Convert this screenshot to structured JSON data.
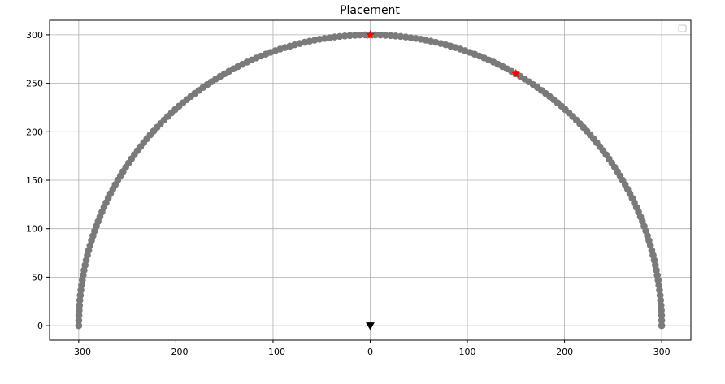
{
  "chart_data": {
    "type": "scatter",
    "title": "Placement",
    "xlabel": "",
    "ylabel": "",
    "xlim": [
      -330,
      330
    ],
    "ylim": [
      -15,
      315
    ],
    "grid": true,
    "legend": {
      "placement": "top-right",
      "entries": []
    },
    "x_ticks": [
      -300,
      -200,
      -100,
      0,
      100,
      200,
      300
    ],
    "x_tick_labels": [
      "−300",
      "−200",
      "−100",
      "0",
      "100",
      "200",
      "300"
    ],
    "y_ticks": [
      0,
      50,
      100,
      150,
      200,
      250,
      300
    ],
    "y_tick_labels": [
      "0",
      "50",
      "100",
      "150",
      "200",
      "250",
      "300"
    ],
    "series": [
      {
        "marker": "circle",
        "color": "#7a7a7a",
        "shape": "semicircle",
        "radius": 300,
        "center": [
          0,
          0
        ],
        "angle_start_deg": 0,
        "angle_end_deg": 180,
        "point_count": 181
      },
      {
        "marker": "star",
        "color": "#ff0000",
        "points": [
          [
            0,
            300
          ],
          [
            150,
            260
          ]
        ]
      },
      {
        "marker": "triangle-down",
        "color": "#000000",
        "points": [
          [
            0,
            0
          ]
        ]
      }
    ]
  }
}
